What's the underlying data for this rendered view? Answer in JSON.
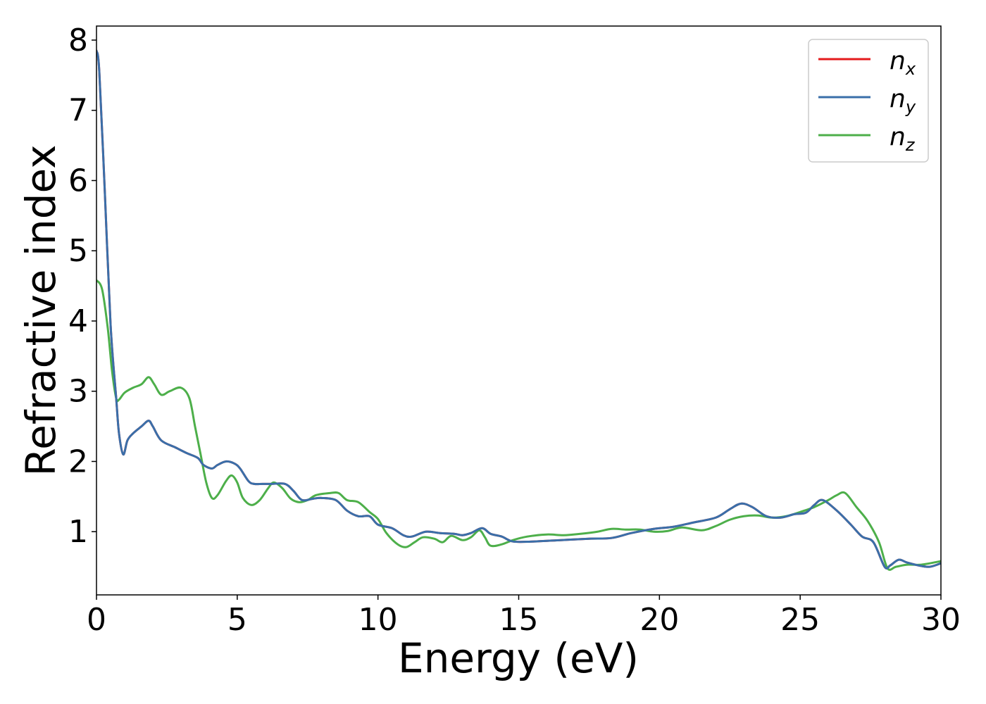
{
  "chart_data": {
    "type": "line",
    "xlabel": "Energy (eV)",
    "ylabel": "Refractive index",
    "xlim": [
      0,
      30
    ],
    "ylim": [
      0.1,
      8.2
    ],
    "xticks": [
      0,
      5,
      10,
      15,
      20,
      25,
      30
    ],
    "xtick_labels": [
      "0",
      "5",
      "10",
      "15",
      "20",
      "25",
      "30"
    ],
    "yticks": [
      1,
      2,
      3,
      4,
      5,
      6,
      7,
      8
    ],
    "ytick_labels": [
      "1",
      "2",
      "3",
      "4",
      "5",
      "6",
      "7",
      "8"
    ],
    "grid": false,
    "legend_position": "top-right",
    "series": [
      {
        "name": "n",
        "subscript": "x",
        "color": "#e41a1c",
        "x": [
          0,
          0.1,
          0.3,
          0.5,
          0.7,
          0.8,
          0.95,
          1.1,
          1.3,
          1.6,
          1.85,
          2.0,
          2.3,
          2.8,
          3.2,
          3.6,
          3.8,
          4.1,
          4.3,
          4.6,
          4.9,
          5.1,
          5.4,
          5.6,
          5.9,
          6.2,
          6.7,
          7.0,
          7.3,
          7.7,
          8.0,
          8.5,
          8.9,
          9.3,
          9.7,
          10.0,
          10.5,
          10.9,
          11.2,
          11.7,
          12.2,
          12.7,
          13.0,
          13.3,
          13.7,
          14.0,
          14.4,
          14.8,
          15.5,
          16.5,
          17.5,
          18.3,
          19.0,
          19.8,
          20.5,
          21.2,
          22.0,
          22.5,
          22.9,
          23.3,
          23.8,
          24.3,
          24.8,
          25.2,
          25.5,
          25.8,
          26.3,
          26.8,
          27.2,
          27.6,
          28.0,
          28.2,
          28.5,
          28.8,
          29.2,
          29.6,
          30.0
        ],
        "y": [
          7.85,
          7.55,
          5.8,
          3.95,
          2.9,
          2.4,
          2.1,
          2.3,
          2.4,
          2.5,
          2.58,
          2.5,
          2.3,
          2.2,
          2.12,
          2.05,
          1.95,
          1.9,
          1.95,
          2.0,
          1.97,
          1.9,
          1.72,
          1.68,
          1.68,
          1.68,
          1.68,
          1.58,
          1.45,
          1.47,
          1.48,
          1.45,
          1.3,
          1.22,
          1.22,
          1.1,
          1.05,
          0.95,
          0.93,
          1.0,
          0.98,
          0.97,
          0.95,
          0.98,
          1.05,
          0.97,
          0.93,
          0.86,
          0.86,
          0.88,
          0.9,
          0.91,
          0.98,
          1.04,
          1.07,
          1.13,
          1.2,
          1.32,
          1.4,
          1.35,
          1.22,
          1.2,
          1.25,
          1.27,
          1.38,
          1.45,
          1.3,
          1.1,
          0.93,
          0.85,
          0.5,
          0.52,
          0.6,
          0.56,
          0.52,
          0.5,
          0.55
        ]
      },
      {
        "name": "n",
        "subscript": "y",
        "color": "#3a6fa9",
        "x": [
          0,
          0.1,
          0.3,
          0.5,
          0.7,
          0.8,
          0.95,
          1.1,
          1.3,
          1.6,
          1.85,
          2.0,
          2.3,
          2.8,
          3.2,
          3.6,
          3.8,
          4.1,
          4.3,
          4.6,
          4.9,
          5.1,
          5.4,
          5.6,
          5.9,
          6.2,
          6.7,
          7.0,
          7.3,
          7.7,
          8.0,
          8.5,
          8.9,
          9.3,
          9.7,
          10.0,
          10.5,
          10.9,
          11.2,
          11.7,
          12.2,
          12.7,
          13.0,
          13.3,
          13.7,
          14.0,
          14.4,
          14.8,
          15.5,
          16.5,
          17.5,
          18.3,
          19.0,
          19.8,
          20.5,
          21.2,
          22.0,
          22.5,
          22.9,
          23.3,
          23.8,
          24.3,
          24.8,
          25.2,
          25.5,
          25.8,
          26.3,
          26.8,
          27.2,
          27.6,
          28.0,
          28.2,
          28.5,
          28.8,
          29.2,
          29.6,
          30.0
        ],
        "y": [
          7.85,
          7.55,
          5.8,
          3.95,
          2.9,
          2.4,
          2.1,
          2.3,
          2.4,
          2.5,
          2.58,
          2.5,
          2.3,
          2.2,
          2.12,
          2.05,
          1.95,
          1.9,
          1.95,
          2.0,
          1.97,
          1.9,
          1.72,
          1.68,
          1.68,
          1.68,
          1.68,
          1.58,
          1.45,
          1.47,
          1.48,
          1.45,
          1.3,
          1.22,
          1.22,
          1.1,
          1.05,
          0.95,
          0.93,
          1.0,
          0.98,
          0.97,
          0.95,
          0.98,
          1.05,
          0.97,
          0.93,
          0.86,
          0.86,
          0.88,
          0.9,
          0.91,
          0.98,
          1.04,
          1.07,
          1.13,
          1.2,
          1.32,
          1.4,
          1.35,
          1.22,
          1.2,
          1.25,
          1.27,
          1.38,
          1.45,
          1.3,
          1.1,
          0.93,
          0.85,
          0.5,
          0.52,
          0.6,
          0.56,
          0.52,
          0.5,
          0.55
        ]
      },
      {
        "name": "n",
        "subscript": "z",
        "color": "#4daf4a",
        "x": [
          0,
          0.2,
          0.4,
          0.55,
          0.7,
          0.8,
          1.0,
          1.3,
          1.6,
          1.85,
          2.05,
          2.3,
          2.6,
          3.0,
          3.3,
          3.5,
          3.7,
          3.9,
          4.1,
          4.3,
          4.6,
          4.8,
          5.0,
          5.2,
          5.5,
          5.8,
          6.1,
          6.3,
          6.6,
          6.9,
          7.2,
          7.5,
          7.8,
          8.3,
          8.6,
          8.9,
          9.3,
          9.7,
          10.0,
          10.3,
          10.7,
          11.0,
          11.3,
          11.6,
          12.0,
          12.3,
          12.6,
          13.0,
          13.3,
          13.6,
          13.8,
          14.0,
          14.4,
          14.8,
          15.3,
          16.0,
          16.6,
          17.2,
          17.8,
          18.3,
          18.8,
          19.3,
          19.8,
          20.3,
          20.8,
          21.5,
          22.0,
          22.5,
          23.0,
          23.5,
          24.0,
          24.5,
          25.0,
          25.5,
          26.0,
          26.3,
          26.6,
          27.0,
          27.4,
          27.8,
          28.1,
          28.4,
          28.8,
          29.3,
          30.0
        ],
        "y": [
          4.58,
          4.45,
          3.9,
          3.3,
          2.9,
          2.88,
          2.98,
          3.05,
          3.1,
          3.2,
          3.1,
          2.95,
          3.0,
          3.05,
          2.9,
          2.5,
          2.1,
          1.7,
          1.48,
          1.52,
          1.72,
          1.8,
          1.7,
          1.48,
          1.38,
          1.45,
          1.62,
          1.7,
          1.62,
          1.47,
          1.42,
          1.45,
          1.52,
          1.55,
          1.55,
          1.45,
          1.42,
          1.28,
          1.18,
          0.98,
          0.82,
          0.78,
          0.85,
          0.92,
          0.9,
          0.85,
          0.94,
          0.88,
          0.92,
          1.02,
          0.92,
          0.8,
          0.82,
          0.88,
          0.93,
          0.96,
          0.95,
          0.97,
          1.0,
          1.04,
          1.03,
          1.03,
          1.0,
          1.01,
          1.06,
          1.02,
          1.08,
          1.17,
          1.22,
          1.23,
          1.2,
          1.22,
          1.28,
          1.35,
          1.45,
          1.52,
          1.55,
          1.35,
          1.15,
          0.85,
          0.48,
          0.5,
          0.53,
          0.53,
          0.58
        ]
      }
    ]
  }
}
